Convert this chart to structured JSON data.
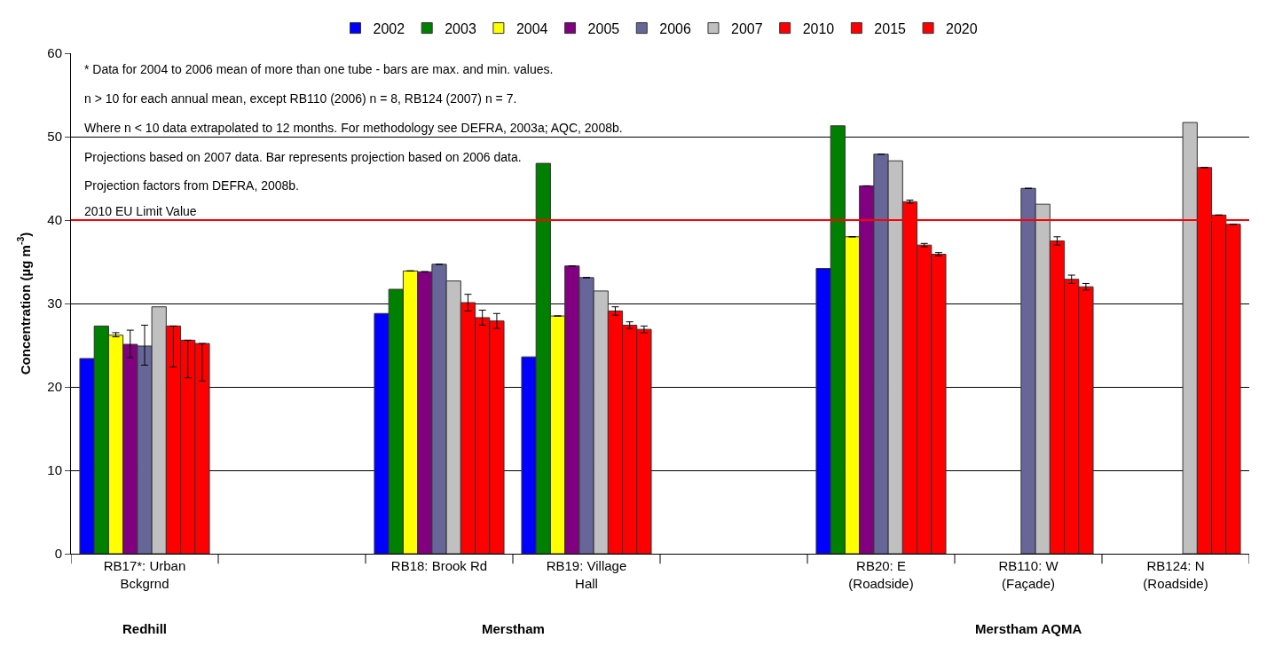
{
  "chart_data": {
    "type": "bar",
    "ylabel": "Concentration (µg m$^{-3}$)",
    "categories": [
      "RB17*: Urban\nBckgrnd",
      null,
      "RB18: Brook Rd",
      "RB19: Village\nHall",
      null,
      "RB20: E\n(Roadside)",
      "RB110: W\n(Façade)",
      "RB124: N\n(Roadside)"
    ],
    "series": [
      {
        "name": "2002",
        "color": "#0000ff",
        "values": [
          23.4,
          null,
          28.8,
          23.6,
          null,
          34.2,
          null,
          null
        ]
      },
      {
        "name": "2003",
        "color": "#008000",
        "values": [
          27.3,
          null,
          31.7,
          46.8,
          null,
          51.3,
          null,
          null
        ]
      },
      {
        "name": "2004",
        "color": "#ffff00",
        "values": [
          26.2,
          null,
          33.9,
          28.5,
          null,
          38.0,
          null,
          null
        ],
        "errors": [
          [
            26.0,
            26.5
          ],
          null,
          null,
          null,
          null,
          null,
          null,
          null
        ]
      },
      {
        "name": "2005",
        "color": "#800080",
        "values": [
          25.1,
          null,
          33.8,
          34.5,
          null,
          44.1,
          null,
          null
        ],
        "errors": [
          [
            23.5,
            26.8
          ],
          null,
          null,
          null,
          null,
          null,
          null,
          null
        ]
      },
      {
        "name": "2006",
        "color": "#666699",
        "values": [
          24.9,
          null,
          34.7,
          33.1,
          null,
          47.9,
          43.8,
          null
        ],
        "errors": [
          [
            22.6,
            27.4
          ],
          null,
          null,
          null,
          null,
          null,
          null,
          null
        ]
      },
      {
        "name": "2007",
        "color": "#c0c0c0",
        "values": [
          29.6,
          null,
          32.7,
          31.5,
          null,
          47.1,
          41.9,
          51.7
        ]
      },
      {
        "name": "2010",
        "color": "#ff0000",
        "values": [
          27.3,
          null,
          30.1,
          29.1,
          null,
          42.2,
          37.5,
          46.3
        ],
        "errors": [
          [
            22.4,
            27.3
          ],
          null,
          1.0,
          0.5,
          null,
          0.2,
          0.5,
          null
        ]
      },
      {
        "name": "2015",
        "color": "#ff0000",
        "values": [
          25.6,
          null,
          28.3,
          27.4,
          null,
          37.0,
          32.9,
          40.6
        ],
        "errors": [
          [
            21.1,
            25.6
          ],
          null,
          0.9,
          0.4,
          null,
          0.2,
          0.5,
          null
        ]
      },
      {
        "name": "2020",
        "color": "#ff0000",
        "values": [
          25.2,
          null,
          27.9,
          26.9,
          null,
          35.9,
          32.0,
          39.5
        ],
        "errors": [
          [
            20.7,
            25.2
          ],
          null,
          0.9,
          0.4,
          null,
          0.2,
          0.4,
          null
        ]
      }
    ],
    "ylim": [
      0,
      60
    ],
    "yticks": [
      0,
      10,
      20,
      30,
      40,
      50,
      60
    ],
    "grid": "y",
    "legend": "top",
    "ref_lines": [
      {
        "axis": "y",
        "value": 40,
        "label": "2010 EU Limit Value",
        "color": "#ff0000"
      }
    ],
    "annotations": [
      "* Data for 2004 to 2006 mean of more than one tube - bars are max. and min. values.",
      "n > 10 for each annual mean, except RB110 (2006) n = 8, RB124 (2007) n = 7.",
      "Where n < 10 data extrapolated to 12 months. For methodology see DEFRA, 2003a; AQC, 2008b.",
      "Projections based on 2007 data. Bar represents projection based on 2006 data.",
      "Projection factors from DEFRA, 2008b.",
      "Redhill",
      "Merstham",
      "Merstham AQMA"
    ]
  }
}
